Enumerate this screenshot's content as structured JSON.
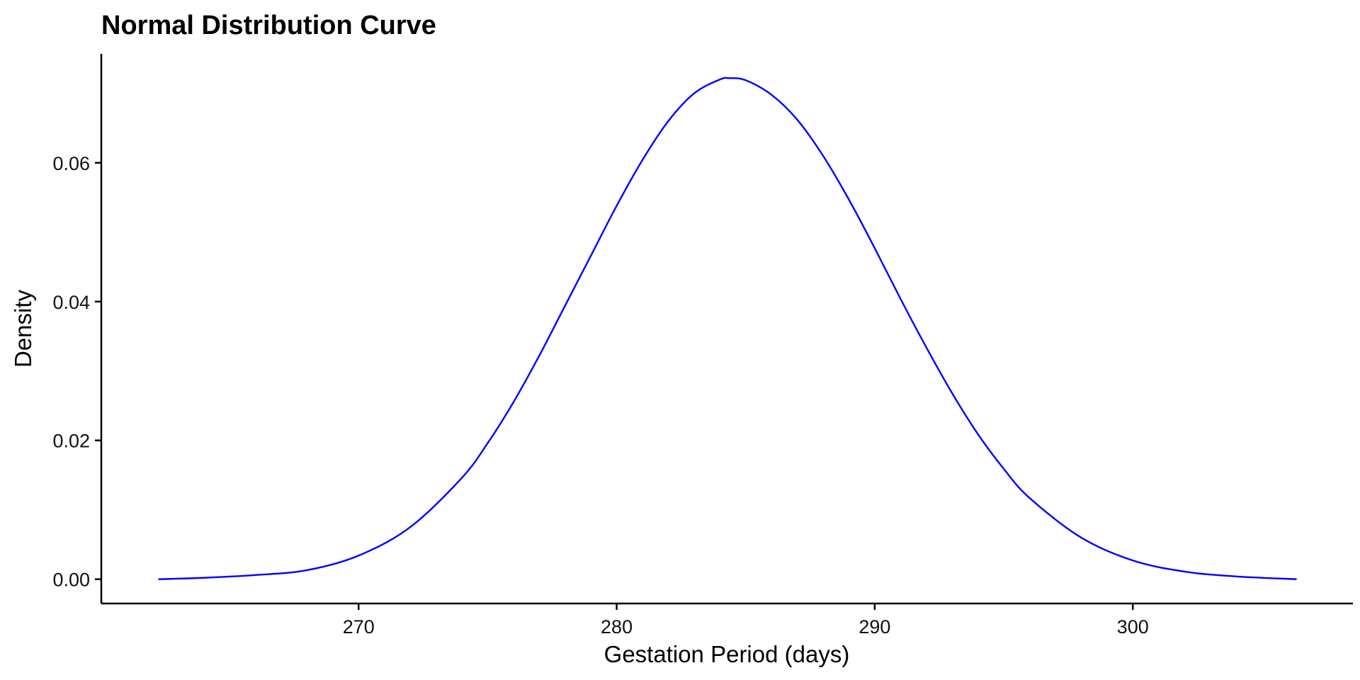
{
  "chart_data": {
    "type": "line",
    "title": "Normal Distribution Curve",
    "xlabel": "Gestation Period (days)",
    "ylabel": "Density",
    "xlim": [
      260.03,
      308.53
    ],
    "ylim": [
      -0.0035,
      0.0757
    ],
    "x_ticks": [
      270,
      280,
      290,
      300
    ],
    "x_tick_labels": [
      "270",
      "280",
      "290",
      "300"
    ],
    "y_ticks": [
      0.0,
      0.02,
      0.04,
      0.06
    ],
    "y_tick_labels": [
      "0.00",
      "0.02",
      "0.04",
      "0.06"
    ],
    "grid": false,
    "legend": "none",
    "series": [
      {
        "color": "#0000ff",
        "x": [
          262.24,
          264.0,
          266.0,
          268.0,
          270.0,
          272.0,
          274.0,
          275.0,
          276.0,
          277.0,
          278.0,
          279.0,
          280.0,
          281.0,
          282.0,
          283.0,
          284.0,
          284.37,
          285.0,
          286.0,
          287.0,
          288.0,
          289.0,
          290.0,
          291.0,
          292.0,
          293.0,
          294.0,
          295.0,
          296.0,
          298.0,
          300.0,
          302.0,
          304.0,
          306.35
        ],
        "y": [
          0.0,
          0.0002,
          0.0006,
          0.0013,
          0.0034,
          0.0075,
          0.0146,
          0.0196,
          0.0255,
          0.0322,
          0.0394,
          0.0466,
          0.0538,
          0.0604,
          0.066,
          0.07,
          0.072,
          0.0722,
          0.0719,
          0.0698,
          0.0662,
          0.061,
          0.0547,
          0.0477,
          0.0404,
          0.0334,
          0.0268,
          0.0209,
          0.0159,
          0.0117,
          0.006,
          0.0027,
          0.0011,
          0.0004,
          0.0
        ]
      }
    ]
  }
}
